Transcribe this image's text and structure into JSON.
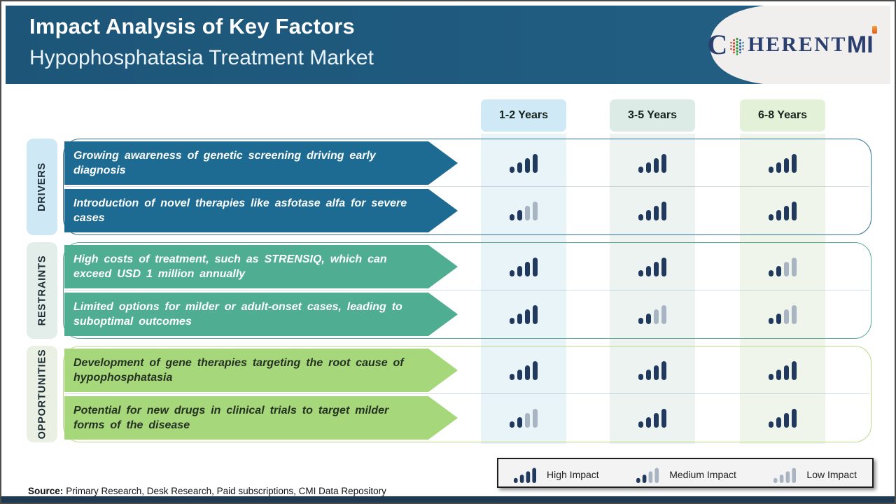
{
  "header": {
    "title": "Impact Analysis of Key Factors",
    "subtitle": "Hypophosphatasia Treatment Market",
    "logo": {
      "part1": "C",
      "part2": "HERENT",
      "part3": "MI"
    }
  },
  "columns": [
    {
      "label": "1-2 Years",
      "bg": "#cfe9f6",
      "band_bg": "#e9f4f9"
    },
    {
      "label": "3-5 Years",
      "bg": "#dcebe6",
      "band_bg": "#ecf3f0"
    },
    {
      "label": "6-8 Years",
      "bg": "#e3f1d9",
      "band_bg": "#eff5eb"
    }
  ],
  "groups": [
    {
      "label": "DRIVERS",
      "label_bg": "#cfe8f5",
      "arrow_color": "#1d6b93",
      "text_color": "#ffffff",
      "border_color": "#2e6f97",
      "rows": [
        {
          "text": "Growing awareness of genetic screening driving early diagnosis",
          "impacts": [
            "high",
            "high",
            "high"
          ]
        },
        {
          "text": "Introduction of novel therapies like asfotase alfa for severe cases",
          "impacts": [
            "medium",
            "high",
            "high"
          ]
        }
      ]
    },
    {
      "label": "RESTRAINTS",
      "label_bg": "#e3ede9",
      "arrow_color": "#4fae92",
      "text_color": "#ffffff",
      "border_color": "#57a992",
      "rows": [
        {
          "text": "High costs of treatment, such as STRENSIQ, which can exceed USD 1 million annually",
          "impacts": [
            "high",
            "high",
            "medium"
          ]
        },
        {
          "text": "Limited options for milder or adult-onset cases, leading to suboptimal outcomes",
          "impacts": [
            "high",
            "medium",
            "medium"
          ]
        }
      ]
    },
    {
      "label": "OPPORTUNITIES",
      "label_bg": "#eaf0e3",
      "arrow_color": "#a6d87b",
      "text_color": "#253122",
      "border_color": "#bcd98b",
      "rows": [
        {
          "text": "Development of gene therapies targeting the root cause of hypophosphatasia",
          "impacts": [
            "high",
            "high",
            "high"
          ]
        },
        {
          "text": "Potential for new drugs in clinical trials to target milder forms of the disease",
          "impacts": [
            "medium",
            "high",
            "high"
          ]
        }
      ]
    }
  ],
  "legend": [
    {
      "level": "high",
      "label": "High Impact"
    },
    {
      "level": "medium",
      "label": "Medium Impact"
    },
    {
      "level": "low",
      "label": "Low Impact"
    }
  ],
  "source": {
    "prefix": "Source:",
    "text": "Primary Research, Desk Research, Paid subscriptions, CMI Data Repository"
  },
  "impact_colors": {
    "filled": "#21395c",
    "empty": "#a9b4c2"
  }
}
